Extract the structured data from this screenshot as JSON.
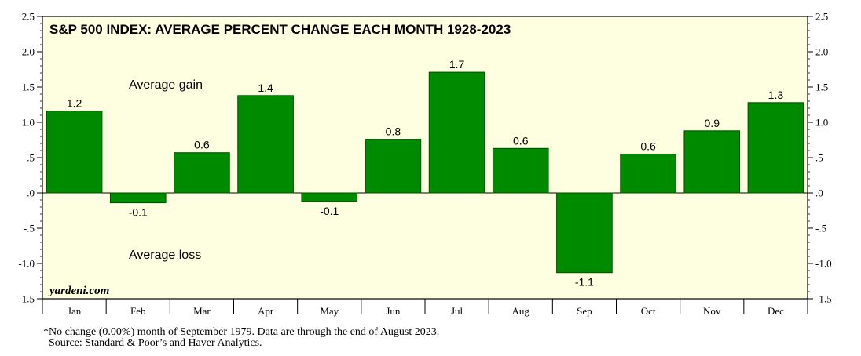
{
  "chart_data": {
    "type": "bar",
    "title": "S&P 500 INDEX: AVERAGE PERCENT CHANGE EACH MONTH 1928-2023",
    "categories": [
      "Jan",
      "Feb",
      "Mar",
      "Apr",
      "May",
      "Jun",
      "Jul",
      "Aug",
      "Sep",
      "Oct",
      "Nov",
      "Dec"
    ],
    "values": [
      1.16,
      -0.14,
      0.57,
      1.38,
      -0.12,
      0.76,
      1.71,
      0.63,
      -1.13,
      0.55,
      0.88,
      1.28
    ],
    "data_labels": [
      "1.2",
      "-0.1",
      "0.6",
      "1.4",
      "-0.1",
      "0.8",
      "1.7",
      "0.6",
      "-1.1",
      "0.6",
      "0.9",
      "1.3"
    ],
    "ylim": [
      -1.5,
      2.5
    ],
    "y_ticks": [
      2.5,
      2.0,
      1.5,
      1.0,
      0.5,
      0.0,
      -0.5,
      -1.0,
      -1.5
    ],
    "y_tick_labels": [
      "2.5",
      "2.0",
      "1.5",
      "1.0",
      ".5",
      ".0",
      "-.5",
      "-1.0",
      "-1.5"
    ],
    "annotations": {
      "gain": "Average gain",
      "loss": "Average loss"
    },
    "brand": "yardeni.com",
    "plot_background": "#fefee0",
    "bar_color": "#008a00",
    "bar_edge_color": "#004d00",
    "grid": false,
    "legend": "none"
  },
  "footnote": {
    "line1": "*No change (0.00%) month of September 1979. Data are through the end of August 2023.",
    "line2": "Source: Standard & Poor’s and Haver Analytics."
  }
}
